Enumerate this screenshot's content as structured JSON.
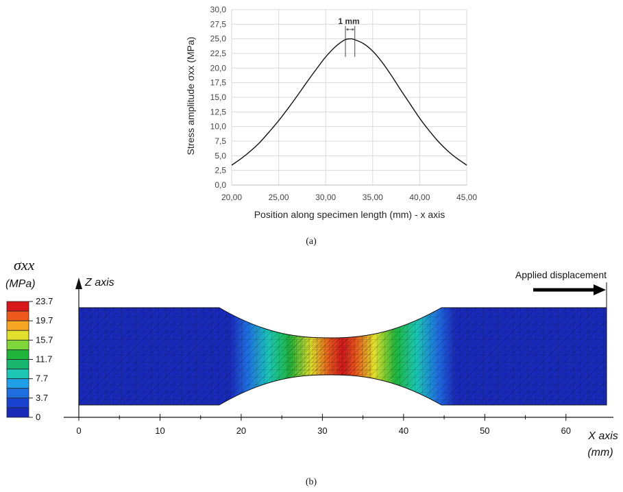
{
  "chart_data": [
    {
      "type": "line",
      "panel_label": "(a)",
      "title": "",
      "xlabel": "Position along specimen length (mm) - x axis",
      "ylabel": "Stress amplitude σxx (MPa)",
      "xlim": [
        20,
        45
      ],
      "ylim": [
        0,
        30
      ],
      "x_ticks": [
        "20,00",
        "25,00",
        "30,00",
        "35,00",
        "40,00",
        "45,00"
      ],
      "y_ticks": [
        "0,0",
        "2,5",
        "5,0",
        "7,5",
        "10,0",
        "12,5",
        "15,0",
        "17,5",
        "20,0",
        "22,5",
        "25,0",
        "27,5",
        "30,0"
      ],
      "grid": true,
      "annotation": "1 mm",
      "marker_lines_x": [
        32.1,
        33.1
      ],
      "series": [
        {
          "x": [
            20,
            21,
            22,
            23,
            24,
            25,
            26,
            27,
            28,
            29,
            30,
            31,
            32,
            32.6,
            33,
            34,
            35,
            36,
            37,
            38,
            39,
            40,
            41,
            42,
            43,
            44,
            45
          ],
          "values": [
            3.4,
            4.5,
            5.8,
            7.3,
            9.1,
            11.0,
            13.1,
            15.3,
            17.6,
            19.8,
            21.9,
            23.6,
            24.8,
            25.0,
            24.9,
            24.2,
            22.9,
            21.0,
            18.7,
            16.2,
            13.8,
            11.4,
            9.3,
            7.4,
            5.8,
            4.5,
            3.4
          ]
        }
      ]
    },
    {
      "type": "heatmap",
      "panel_label": "(b)",
      "title": "",
      "xlabel": "X axis (mm)",
      "ylabel": "Z axis",
      "xlim": [
        0,
        65
      ],
      "x_ticks": [
        "0",
        "10",
        "20",
        "30",
        "40",
        "50",
        "60"
      ],
      "legend_title": "σxx",
      "legend_unit": "(MPa)",
      "legend_ticks": [
        "23.7",
        "19.7",
        "15.7",
        "11.7",
        "7.7",
        "3.7",
        "0"
      ],
      "legend_colors": [
        "#d7191c",
        "#ef5a1c",
        "#f6a623",
        "#e2e02c",
        "#7fd63b",
        "#1fb53b",
        "#18b56f",
        "#1cc5b4",
        "#1fa0e8",
        "#1f6ee0",
        "#1a42cf",
        "#1a2ab8"
      ],
      "annotation": "Applied displacement",
      "profile": {
        "x": [
          0,
          17.5,
          19,
          21,
          23,
          25,
          27,
          29,
          31,
          32.5,
          34,
          36,
          38,
          40,
          42,
          44,
          46,
          47.5,
          65
        ],
        "stress": [
          0.5,
          0.5,
          2.0,
          4.5,
          8.0,
          12.0,
          16.0,
          20.0,
          22.8,
          23.7,
          22.8,
          20.0,
          16.0,
          12.0,
          8.0,
          4.5,
          2.0,
          0.5,
          0.5
        ]
      }
    }
  ]
}
